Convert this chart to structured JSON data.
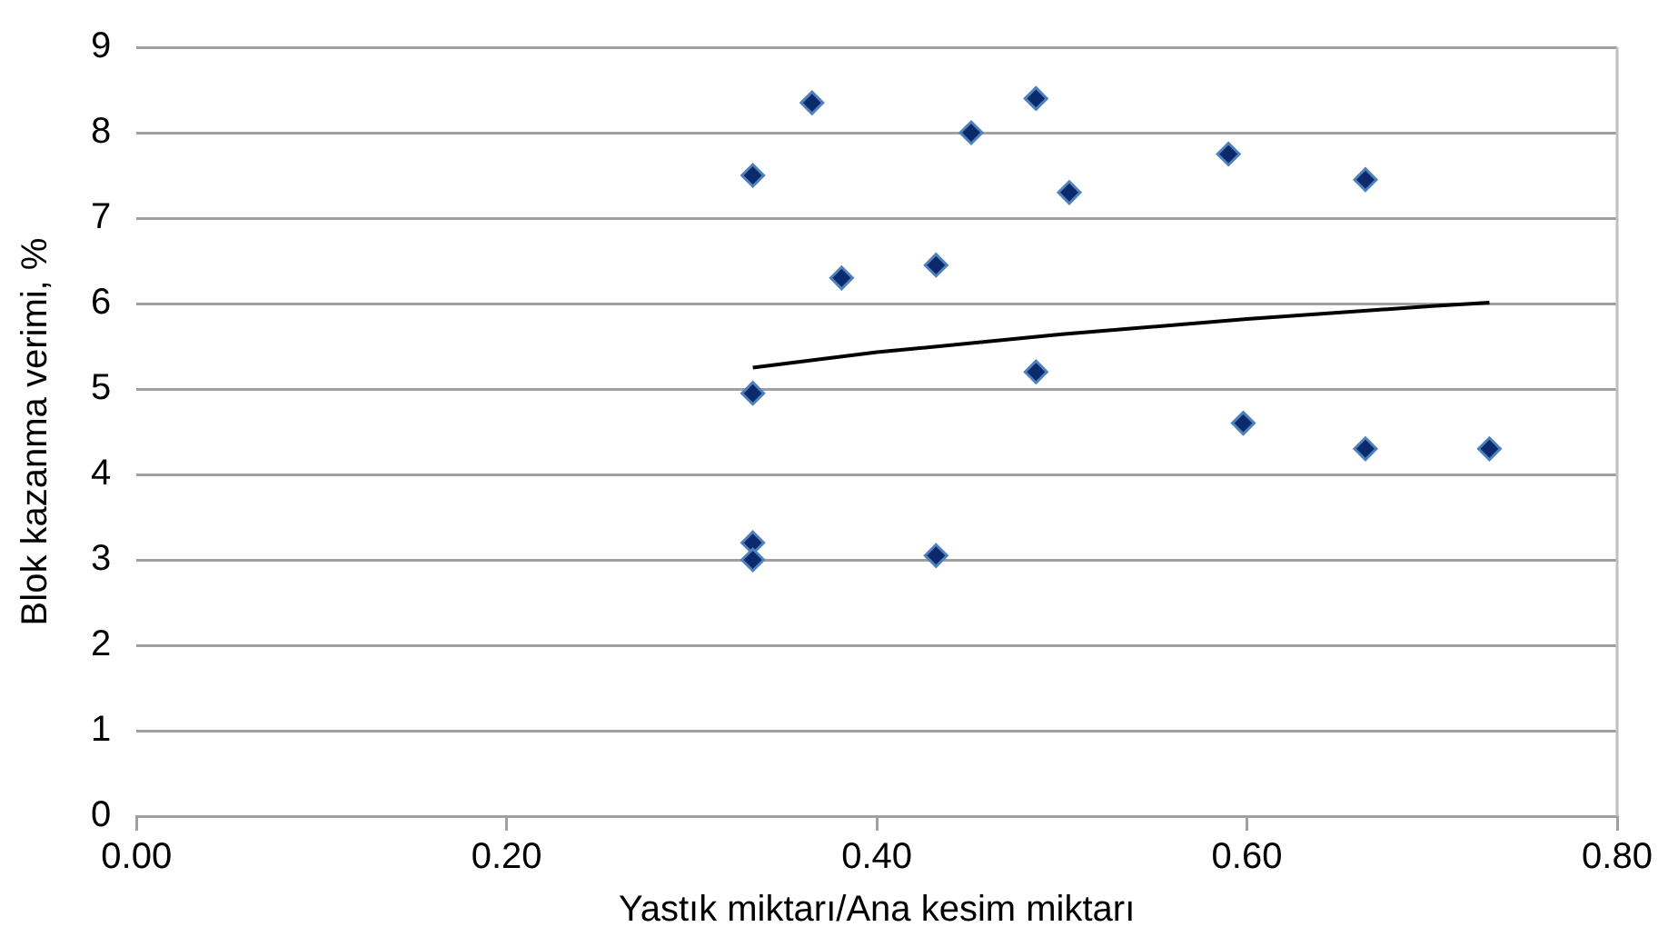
{
  "chart_data": {
    "type": "scatter",
    "xlabel": "Yastık miktarı/Ana kesim miktarı",
    "ylabel": "Blok kazanma verimi, %",
    "xlim": [
      0,
      0.8
    ],
    "xticks": [
      {
        "value": 0,
        "label": "0.00"
      },
      {
        "value": 0.2,
        "label": "0.20"
      },
      {
        "value": 0.4,
        "label": "0.40"
      },
      {
        "value": 0.6,
        "label": "0.60"
      },
      {
        "value": 0.8,
        "label": "0.80"
      }
    ],
    "ylim": [
      0,
      9
    ],
    "yticks": [
      0,
      1,
      2,
      3,
      4,
      5,
      6,
      7,
      8,
      9
    ],
    "grid": "y",
    "marker": "diamond",
    "legend": false,
    "series": [
      {
        "color": "#0b2a6b",
        "x": [
          0.333,
          0.365,
          0.451,
          0.486,
          0.504,
          0.381,
          0.432,
          0.333,
          0.486,
          0.333,
          0.333,
          0.432,
          0.59,
          0.664,
          0.598,
          0.664,
          0.731
        ],
        "values": [
          7.5,
          8.35,
          8.0,
          8.4,
          7.3,
          6.3,
          6.45,
          4.95,
          5.2,
          3.2,
          3.0,
          3.05,
          7.75,
          7.45,
          4.6,
          4.3,
          4.3
        ]
      },
      {
        "type": "line",
        "color": "#000000",
        "marker": "none",
        "x": [
          0.333,
          0.4,
          0.5,
          0.6,
          0.7,
          0.731
        ],
        "values": [
          5.25,
          5.43,
          5.64,
          5.82,
          5.97,
          6.01
        ]
      }
    ]
  }
}
